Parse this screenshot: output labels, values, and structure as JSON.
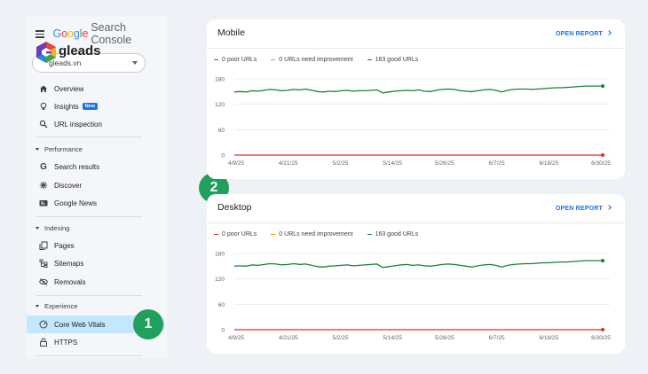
{
  "app": {
    "title_parts": [
      "G",
      "o",
      "o",
      "g",
      "l",
      "e"
    ],
    "title_suffix": "Search Console",
    "logo_text": "gleads",
    "property": "gleads.vn"
  },
  "sidebar": {
    "top_items": [
      {
        "label": "Overview",
        "icon": "home-icon"
      },
      {
        "label": "Insights",
        "icon": "lightbulb-icon",
        "badge": "New"
      },
      {
        "label": "URL inspection",
        "icon": "search-icon"
      }
    ],
    "sections": [
      {
        "title": "Performance",
        "items": [
          {
            "label": "Search results",
            "icon": "google-g-icon"
          },
          {
            "label": "Discover",
            "icon": "asterisk-icon"
          },
          {
            "label": "Google News",
            "icon": "news-icon"
          }
        ]
      },
      {
        "title": "Indexing",
        "items": [
          {
            "label": "Pages",
            "icon": "pages-icon"
          },
          {
            "label": "Sitemaps",
            "icon": "sitemap-icon"
          },
          {
            "label": "Removals",
            "icon": "eye-off-icon"
          }
        ]
      },
      {
        "title": "Experience",
        "items": [
          {
            "label": "Core Web Vitals",
            "icon": "gauge-icon",
            "active": true
          },
          {
            "label": "HTTPS",
            "icon": "lock-icon"
          }
        ]
      }
    ]
  },
  "steps": [
    "1",
    "2"
  ],
  "colors": {
    "poor": "#d93025",
    "improve": "#f29900",
    "good": "#188038",
    "link": "#1a73e8"
  },
  "cards": [
    {
      "title": "Mobile",
      "link": "OPEN REPORT",
      "legend": [
        "0 poor URLs",
        "0 URLs need improvement",
        "163 good URLs"
      ]
    },
    {
      "title": "Desktop",
      "link": "OPEN REPORT",
      "legend": [
        "0 poor URLs",
        "0 URLs need improvement",
        "163 good URLs"
      ]
    }
  ],
  "chart_data": [
    {
      "type": "line",
      "title": "Mobile",
      "x_labels": [
        "4/9/25",
        "4/21/25",
        "5/2/25",
        "5/14/25",
        "5/26/25",
        "6/7/25",
        "6/18/25",
        "6/30/25"
      ],
      "y_ticks": [
        "180",
        "120",
        "60",
        "0"
      ],
      "ylim": [
        0,
        180
      ],
      "series": [
        {
          "name": "163 good URLs",
          "color": "#188038",
          "values": [
            149,
            150,
            149,
            152,
            151,
            153,
            155,
            154,
            152,
            153,
            155,
            154,
            156,
            153,
            150,
            149,
            151,
            150,
            152,
            153,
            151,
            152,
            152,
            153,
            154,
            147,
            149,
            151,
            152,
            153,
            152,
            154,
            151,
            150,
            153,
            155,
            156,
            155,
            152,
            151,
            150,
            152,
            154,
            155,
            153,
            149,
            153,
            155,
            156,
            156,
            155,
            156,
            157,
            158,
            159,
            159,
            160,
            161,
            162,
            163,
            163,
            163,
            163
          ]
        },
        {
          "name": "0 poor URLs",
          "color": "#d93025",
          "values": [
            0,
            0,
            0,
            0,
            0,
            0,
            0,
            0,
            0,
            0,
            0,
            0,
            0,
            0,
            0,
            0,
            0,
            0,
            0,
            0,
            0,
            0,
            0,
            0,
            0,
            0,
            0,
            0,
            0,
            0,
            0,
            0,
            0,
            0,
            0,
            0,
            0,
            0,
            0,
            0,
            0,
            0,
            0,
            0,
            0,
            0,
            0,
            0,
            0,
            0,
            0,
            0,
            0,
            0,
            0,
            0,
            0,
            0,
            0,
            0,
            0,
            0,
            0
          ]
        }
      ]
    },
    {
      "type": "line",
      "title": "Desktop",
      "x_labels": [
        "4/9/25",
        "4/21/25",
        "5/2/25",
        "5/14/25",
        "5/26/25",
        "6/7/25",
        "6/18/25",
        "6/30/25"
      ],
      "y_ticks": [
        "180",
        "120",
        "60",
        "0"
      ],
      "ylim": [
        0,
        180
      ],
      "series": [
        {
          "name": "163 good URLs",
          "color": "#188038",
          "values": [
            150,
            151,
            150,
            153,
            152,
            154,
            156,
            155,
            153,
            154,
            156,
            154,
            155,
            152,
            149,
            148,
            150,
            151,
            152,
            153,
            151,
            152,
            153,
            154,
            155,
            147,
            149,
            151,
            153,
            154,
            152,
            153,
            151,
            150,
            152,
            154,
            155,
            154,
            152,
            150,
            148,
            151,
            153,
            154,
            152,
            148,
            152,
            154,
            155,
            156,
            156,
            157,
            158,
            158,
            159,
            160,
            160,
            161,
            162,
            163,
            163,
            163,
            163
          ]
        },
        {
          "name": "0 poor URLs",
          "color": "#d93025",
          "values": [
            0,
            0,
            0,
            0,
            0,
            0,
            0,
            0,
            0,
            0,
            0,
            0,
            0,
            0,
            0,
            0,
            0,
            0,
            0,
            0,
            0,
            0,
            0,
            0,
            0,
            0,
            0,
            0,
            0,
            0,
            0,
            0,
            0,
            0,
            0,
            0,
            0,
            0,
            0,
            0,
            0,
            0,
            0,
            0,
            0,
            0,
            0,
            0,
            0,
            0,
            0,
            0,
            0,
            0,
            0,
            0,
            0,
            0,
            0,
            0,
            0,
            0,
            0
          ]
        }
      ]
    }
  ]
}
